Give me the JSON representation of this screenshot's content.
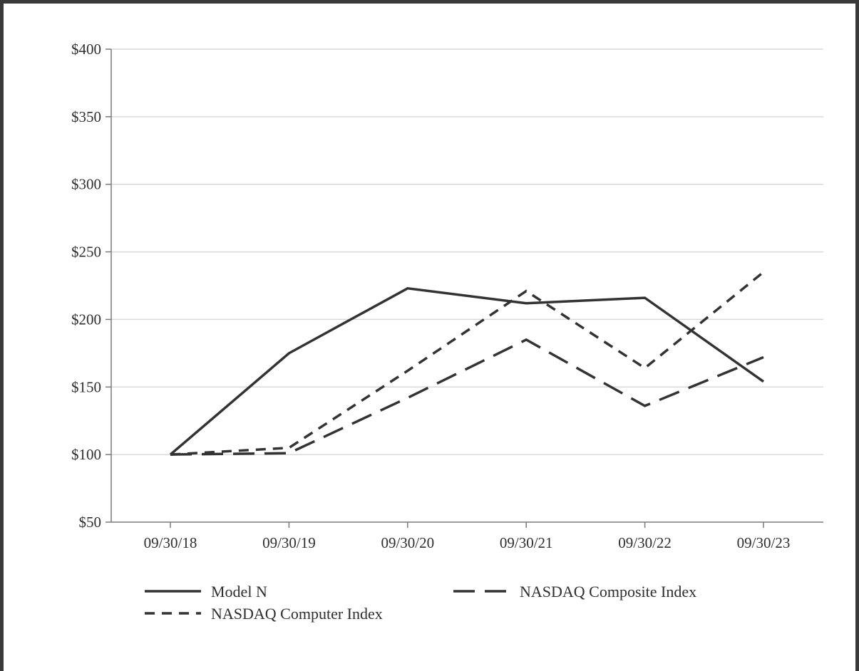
{
  "chart_data": {
    "type": "line",
    "title": "",
    "xlabel": "",
    "ylabel": "",
    "categories": [
      "09/30/18",
      "09/30/19",
      "09/30/20",
      "09/30/21",
      "09/30/22",
      "09/30/23"
    ],
    "ylim": [
      50,
      400
    ],
    "yticks": [
      50,
      100,
      150,
      200,
      250,
      300,
      350,
      400
    ],
    "ytick_labels": [
      "$50",
      "$100",
      "$150",
      "$200",
      "$250",
      "$300",
      "$350",
      "$400"
    ],
    "grid": true,
    "legend_position": "bottom",
    "series": [
      {
        "name": "Model N",
        "line_style": "solid",
        "color": "#333333",
        "values": [
          100,
          175,
          223,
          212,
          216,
          154
        ]
      },
      {
        "name": "NASDAQ Composite Index",
        "line_style": "long-dash",
        "color": "#333333",
        "values": [
          100,
          101,
          142,
          185,
          136,
          172
        ]
      },
      {
        "name": "NASDAQ Computer Index",
        "line_style": "short-dash",
        "color": "#333333",
        "values": [
          100,
          105,
          162,
          221,
          164,
          235
        ]
      }
    ]
  }
}
